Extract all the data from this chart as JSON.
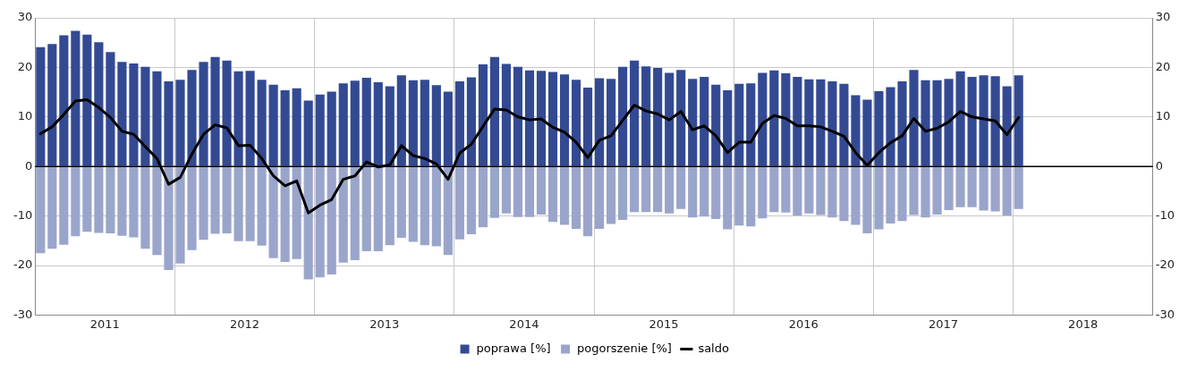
{
  "chart_data": {
    "type": "bar",
    "stacked": true,
    "x": [
      "2011-01-15",
      "2011-02-15",
      "2011-03-15",
      "2011-04-15",
      "2011-05-15",
      "2011-06-15",
      "2011-07-15",
      "2011-08-15",
      "2011-09-15",
      "2011-10-15",
      "2011-11-15",
      "2011-12-15",
      "2012-01-15",
      "2012-02-15",
      "2012-03-15",
      "2012-04-15",
      "2012-05-15",
      "2012-06-15",
      "2012-07-15",
      "2012-08-15",
      "2012-09-15",
      "2012-10-15",
      "2012-11-15",
      "2012-12-15",
      "2013-01-15",
      "2013-02-15",
      "2013-03-15",
      "2013-04-15",
      "2013-05-15",
      "2013-06-15",
      "2013-07-15",
      "2013-08-15",
      "2013-09-15",
      "2013-10-15",
      "2013-11-15",
      "2013-12-15",
      "2014-01-15",
      "2014-02-15",
      "2014-03-15",
      "2014-04-15",
      "2014-05-15",
      "2014-06-15",
      "2014-07-15",
      "2014-08-15",
      "2014-09-15",
      "2014-10-15",
      "2014-11-15",
      "2014-12-15",
      "2015-01-15",
      "2015-02-15",
      "2015-03-15",
      "2015-04-15",
      "2015-05-15",
      "2015-06-15",
      "2015-07-15",
      "2015-08-15",
      "2015-09-15",
      "2015-10-15",
      "2015-11-15",
      "2015-12-15",
      "2016-01-15",
      "2016-02-15",
      "2016-03-15",
      "2016-04-15",
      "2016-05-15",
      "2016-06-15",
      "2016-07-15",
      "2016-08-15",
      "2016-09-15",
      "2016-10-15",
      "2016-11-15",
      "2016-12-15",
      "2017-01-15",
      "2017-02-15",
      "2017-03-15",
      "2017-04-15",
      "2017-05-15",
      "2017-06-15",
      "2017-07-15",
      "2017-08-15",
      "2017-09-15",
      "2017-10-15",
      "2017-11-15",
      "2017-12-15",
      "2018-01-15"
    ],
    "series": [
      {
        "name": "poprawa [%]",
        "color": "#334a93",
        "values": [
          24.1,
          24.7,
          26.5,
          27.4,
          26.6,
          25.1,
          23.1,
          21.1,
          20.8,
          20.1,
          19.2,
          17.2,
          17.5,
          19.5,
          21.1,
          22.1,
          21.4,
          19.2,
          19.3,
          17.5,
          16.5,
          15.4,
          15.8,
          13.3,
          14.5,
          15.1,
          16.8,
          17.3,
          17.9,
          17.0,
          16.2,
          18.4,
          17.4,
          17.5,
          16.4,
          15.1,
          17.2,
          18.0,
          20.6,
          22.1,
          20.7,
          20.1,
          19.4,
          19.3,
          19.1,
          18.6,
          17.5,
          15.9,
          17.8,
          17.7,
          20.1,
          21.4,
          20.2,
          19.9,
          18.9,
          19.5,
          17.7,
          18.1,
          16.5,
          15.4,
          16.7,
          16.8,
          18.9,
          19.4,
          18.8,
          18.1,
          17.6,
          17.6,
          17.2,
          16.7,
          14.4,
          13.5,
          15.2,
          16.0,
          17.2,
          19.5,
          17.4,
          17.4,
          17.7,
          19.2,
          18.1,
          18.4,
          18.2,
          16.2,
          18.4
        ]
      },
      {
        "name": "pogorszenie [%]",
        "color": "#9aa5cb",
        "values": [
          -17.5,
          -16.6,
          -15.8,
          -14.1,
          -13.2,
          -13.4,
          -13.5,
          -14.0,
          -14.3,
          -16.6,
          -17.9,
          -20.9,
          -19.6,
          -16.9,
          -14.8,
          -13.6,
          -13.5,
          -15.1,
          -15.1,
          -16.0,
          -18.5,
          -19.3,
          -18.7,
          -22.8,
          -22.4,
          -21.8,
          -19.4,
          -18.9,
          -17.1,
          -17.1,
          -15.9,
          -14.4,
          -15.2,
          -15.9,
          -16.1,
          -17.9,
          -14.7,
          -13.7,
          -12.3,
          -10.4,
          -9.5,
          -10.2,
          -10.2,
          -9.7,
          -11.2,
          -11.8,
          -12.6,
          -14.1,
          -12.6,
          -11.6,
          -10.8,
          -9.2,
          -9.2,
          -9.2,
          -9.5,
          -8.6,
          -10.3,
          -10.1,
          -10.6,
          -12.7,
          -11.9,
          -12.1,
          -10.5,
          -9.2,
          -9.3,
          -9.9,
          -9.5,
          -9.8,
          -10.3,
          -11.0,
          -11.8,
          -13.5,
          -12.7,
          -11.5,
          -11.0,
          -9.8,
          -10.3,
          -9.7,
          -8.8,
          -8.2,
          -8.2,
          -8.9,
          -9.1,
          -9.9,
          -8.6
        ]
      },
      {
        "name": "saldo",
        "type": "line",
        "color": "#000000",
        "values": [
          6.6,
          8.0,
          10.5,
          13.2,
          13.5,
          11.9,
          9.9,
          7.1,
          6.5,
          4.0,
          1.6,
          -3.6,
          -2.2,
          2.5,
          6.5,
          8.4,
          7.8,
          4.2,
          4.3,
          1.6,
          -1.9,
          -3.9,
          -2.9,
          -9.4,
          -7.8,
          -6.7,
          -2.6,
          -1.9,
          0.9,
          -0.1,
          0.3,
          4.2,
          2.2,
          1.6,
          0.5,
          -2.6,
          2.7,
          4.5,
          8.1,
          11.6,
          11.4,
          10.0,
          9.4,
          9.6,
          7.9,
          6.9,
          4.9,
          1.8,
          5.3,
          6.2,
          9.3,
          12.4,
          11.2,
          10.6,
          9.4,
          11.1,
          7.4,
          8.2,
          6.2,
          2.8,
          4.9,
          4.9,
          8.7,
          10.3,
          9.7,
          8.2,
          8.2,
          8.0,
          7.1,
          6.1,
          2.8,
          0.2,
          2.8,
          4.8,
          6.2,
          9.7,
          7.1,
          7.7,
          9.0,
          11.1,
          10.0,
          9.6,
          9.2,
          6.4,
          9.9
        ]
      }
    ],
    "xlim": [
      "2011-01",
      "2019-01"
    ],
    "xticks": [
      {
        "value": "2011-01",
        "label": null
      },
      {
        "value": "2011-07",
        "label": "2011"
      },
      {
        "value": "2012-01",
        "label": null
      },
      {
        "value": "2012-07",
        "label": "2012"
      },
      {
        "value": "2013-01",
        "label": null
      },
      {
        "value": "2013-07",
        "label": "2013"
      },
      {
        "value": "2014-01",
        "label": null
      },
      {
        "value": "2014-07",
        "label": "2014"
      },
      {
        "value": "2015-01",
        "label": null
      },
      {
        "value": "2015-07",
        "label": "2015"
      },
      {
        "value": "2016-01",
        "label": null
      },
      {
        "value": "2016-07",
        "label": "2016"
      },
      {
        "value": "2017-01",
        "label": null
      },
      {
        "value": "2017-07",
        "label": "2017"
      },
      {
        "value": "2018-01",
        "label": null
      },
      {
        "value": "2018-07",
        "label": "2018"
      },
      {
        "value": "2019-01",
        "label": null
      }
    ],
    "ylim": [
      -30,
      30
    ],
    "yticks": [
      -30,
      -20,
      -10,
      0,
      10,
      20,
      30
    ],
    "y2lim": [
      -30,
      30
    ],
    "y2ticks": [
      -30,
      -20,
      -10,
      0,
      10,
      20,
      30
    ],
    "grid": true,
    "legend": "bottom"
  }
}
